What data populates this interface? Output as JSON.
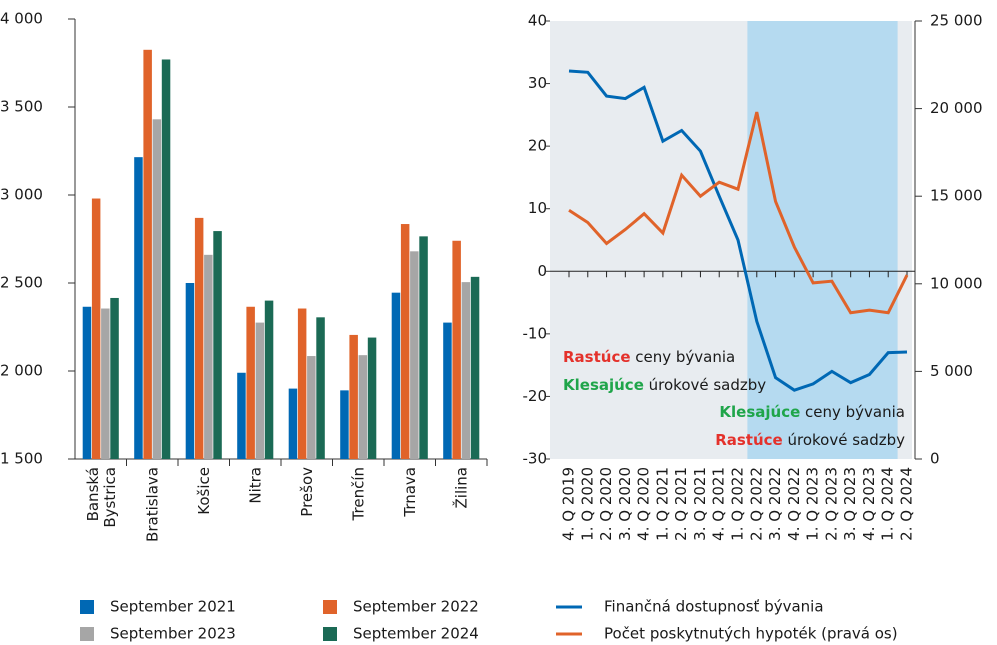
{
  "chart_data": [
    {
      "type": "bar",
      "categories": [
        "Banská Bystrica",
        "Bratislava",
        "Košice",
        "Nitra",
        "Prešov",
        "Trenčín",
        "Trnava",
        "Žilina"
      ],
      "series": [
        {
          "name": "September 2021",
          "color": "#0068b4",
          "values": [
            2365,
            3215,
            2500,
            1990,
            1900,
            1890,
            2445,
            2275
          ]
        },
        {
          "name": "September 2022",
          "color": "#e0632a",
          "values": [
            2980,
            3825,
            2870,
            2365,
            2355,
            2205,
            2835,
            2740
          ]
        },
        {
          "name": "September 2023",
          "color": "#a6a6a6",
          "values": [
            2355,
            3430,
            2660,
            2275,
            2085,
            2090,
            2680,
            2505
          ]
        },
        {
          "name": "September 2024",
          "color": "#1b6a55",
          "values": [
            2415,
            3770,
            2795,
            2400,
            2305,
            2190,
            2765,
            2535
          ]
        }
      ],
      "ylim": [
        1500,
        4000
      ],
      "yticks": [
        {
          "value": 1500,
          "label": "1 500"
        },
        {
          "value": 2000,
          "label": "2 000"
        },
        {
          "value": 2500,
          "label": "2 500"
        },
        {
          "value": 3000,
          "label": "3 000"
        },
        {
          "value": 3500,
          "label": "3 500"
        },
        {
          "value": 4000,
          "label": "4 000"
        }
      ]
    },
    {
      "type": "line",
      "categories": [
        "4. Q 2019",
        "1. Q 2020",
        "2. Q 2020",
        "3. Q 2020",
        "4. Q 2020",
        "1. Q 2021",
        "2. Q 2021",
        "3. Q 2021",
        "4. Q 2021",
        "1. Q 2022",
        "2. Q 2022",
        "3. Q 2022",
        "4. Q 2022",
        "1. Q 2023",
        "2. Q 2023",
        "3. Q 2023",
        "4. Q 2023",
        "1. Q 2024",
        "2. Q 2024"
      ],
      "series": [
        {
          "name": "Finančná dostupnosť bývania",
          "color": "#0068b4",
          "values": [
            32,
            31.8,
            28,
            27.6,
            29.4,
            20.8,
            22.5,
            19.2,
            12,
            5,
            -8,
            -17,
            -19,
            -18,
            -16,
            -17.8,
            -16.5,
            -13,
            -12.9
          ]
        },
        {
          "name": "Počet poskytnutých hypoték (pravá os)",
          "color": "#e0632a",
          "axis": "y2",
          "values": [
            14200,
            13500,
            12300,
            13100,
            14000,
            12900,
            16200,
            15000,
            15800,
            15400,
            19800,
            14700,
            12100,
            10050,
            10150,
            8350,
            8500,
            8350,
            10500
          ]
        }
      ],
      "ylim": [
        -30,
        40
      ],
      "yticks": [
        -30,
        -20,
        -10,
        0,
        10,
        20,
        30,
        40
      ],
      "y2lim": [
        0,
        25000
      ],
      "y2ticks": [
        0,
        {
          "value": 5000,
          "label": "5 000"
        },
        {
          "value": 10000,
          "label": "10 000"
        },
        {
          "value": 15000,
          "label": "15 000"
        },
        {
          "value": 20000,
          "label": "20 000"
        },
        {
          "value": 25000,
          "label": "25 000"
        }
      ],
      "background": "#e8ecf0",
      "shaded": {
        "from": "2. Q 2022",
        "to": "1. Q 2024",
        "color": "#b5daf0"
      },
      "annotations": [
        {
          "parts": [
            {
              "text": "Rastúce",
              "color": "#e4312b",
              "bold": true
            },
            {
              "text": " ceny bývania"
            }
          ]
        },
        {
          "parts": [
            {
              "text": "Klesajúce",
              "color": "#1fa54a",
              "bold": true
            },
            {
              "text": " úrokové sadzby"
            }
          ]
        },
        {
          "parts": [
            {
              "text": "Klesajúce",
              "color": "#1fa54a",
              "bold": true
            },
            {
              "text": " ceny bývania"
            }
          ]
        },
        {
          "parts": [
            {
              "text": "Rastúce",
              "color": "#e4312b",
              "bold": true
            },
            {
              "text": " úrokové sadzby"
            }
          ]
        }
      ]
    }
  ]
}
